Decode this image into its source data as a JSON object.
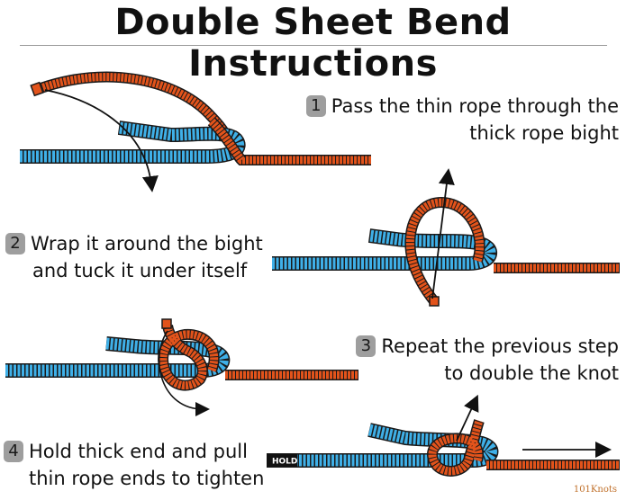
{
  "title": "Double Sheet Bend Instructions",
  "steps": [
    {
      "number": "1",
      "line1": "Pass the thin rope through the",
      "line2": "thick rope bight"
    },
    {
      "number": "2",
      "line1": "Wrap it around the bight",
      "line2": "and tuck it under itself"
    },
    {
      "number": "3",
      "line1": "Repeat the previous step",
      "line2": "to double the knot"
    },
    {
      "number": "4",
      "line1": "Hold thick end and pull",
      "line2": "thin rope ends to tighten"
    }
  ],
  "hold_label": "HOLD",
  "brand": "101Knots",
  "colors": {
    "thick_rope": "#3fb0e8",
    "thin_rope": "#e2531b",
    "outline": "#1a1a1a",
    "badge": "#9e9e9e"
  }
}
